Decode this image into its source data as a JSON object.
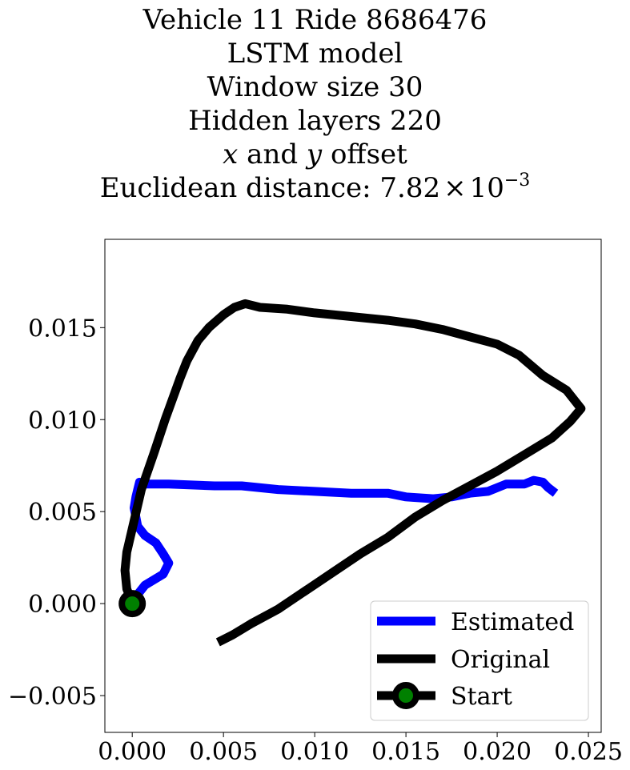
{
  "title": {
    "line1": "Vehicle 11 Ride 8686476",
    "line2": "LSTM model",
    "line3": "Window size 30",
    "line4": "Hidden layers 220",
    "line5_var1": "x",
    "line5_mid": " and ",
    "line5_var2": "y",
    "line5_end": " offset",
    "line6_prefix": "Euclidean distance: 7.82",
    "line6_times": "×",
    "line6_base": "10",
    "line6_exp": "−3"
  },
  "chart_data": {
    "type": "line",
    "xlim": [
      -0.0015,
      0.0257
    ],
    "ylim": [
      -0.007,
      0.0198
    ],
    "xticks": [
      0.0,
      0.005,
      0.01,
      0.015,
      0.02,
      0.025
    ],
    "xtick_labels": [
      "0.000",
      "0.005",
      "0.010",
      "0.015",
      "0.020",
      "0.025"
    ],
    "yticks": [
      -0.005,
      0.0,
      0.005,
      0.01,
      0.015
    ],
    "ytick_labels": [
      "−0.005",
      "0.000",
      "0.005",
      "0.010",
      "0.015"
    ],
    "legend_position": "lower-right",
    "series": [
      {
        "name": "Estimated",
        "color": "#0000ff",
        "points": [
          [
            0.0,
            0.0
          ],
          [
            0.0003,
            0.0005
          ],
          [
            0.0007,
            0.001
          ],
          [
            0.0012,
            0.0013
          ],
          [
            0.0017,
            0.0016
          ],
          [
            0.002,
            0.0022
          ],
          [
            0.0017,
            0.0027
          ],
          [
            0.0013,
            0.0033
          ],
          [
            0.0007,
            0.0037
          ],
          [
            0.0003,
            0.0042
          ],
          [
            0.0002,
            0.0047
          ],
          [
            0.0001,
            0.0052
          ],
          [
            0.0002,
            0.0058
          ],
          [
            0.0003,
            0.0062
          ],
          [
            0.0004,
            0.0066
          ],
          [
            0.0007,
            0.0065
          ],
          [
            0.002,
            0.0065
          ],
          [
            0.0045,
            0.0064
          ],
          [
            0.006,
            0.0064
          ],
          [
            0.008,
            0.0062
          ],
          [
            0.01,
            0.0061
          ],
          [
            0.012,
            0.006
          ],
          [
            0.014,
            0.006
          ],
          [
            0.015,
            0.0058
          ],
          [
            0.0165,
            0.0057
          ],
          [
            0.0175,
            0.0058
          ],
          [
            0.0185,
            0.006
          ],
          [
            0.0195,
            0.0061
          ],
          [
            0.0205,
            0.0065
          ],
          [
            0.0215,
            0.0065
          ],
          [
            0.022,
            0.0067
          ],
          [
            0.0225,
            0.0066
          ],
          [
            0.0228,
            0.0063
          ],
          [
            0.0232,
            0.006
          ]
        ]
      },
      {
        "name": "Original",
        "color": "#000000",
        "points": [
          [
            0.0,
            0.0
          ],
          [
            -0.0003,
            0.0008
          ],
          [
            -0.0004,
            0.0018
          ],
          [
            -0.0003,
            0.0028
          ],
          [
            0.0001,
            0.0045
          ],
          [
            0.0005,
            0.0062
          ],
          [
            0.0012,
            0.0082
          ],
          [
            0.0018,
            0.01
          ],
          [
            0.0026,
            0.0122
          ],
          [
            0.003,
            0.0132
          ],
          [
            0.0036,
            0.0143
          ],
          [
            0.0042,
            0.015
          ],
          [
            0.005,
            0.0157
          ],
          [
            0.0056,
            0.0161
          ],
          [
            0.0062,
            0.0163
          ],
          [
            0.007,
            0.0161
          ],
          [
            0.0085,
            0.016
          ],
          [
            0.01,
            0.0158
          ],
          [
            0.012,
            0.0156
          ],
          [
            0.014,
            0.0154
          ],
          [
            0.0155,
            0.0152
          ],
          [
            0.017,
            0.0149
          ],
          [
            0.0185,
            0.0145
          ],
          [
            0.02,
            0.0141
          ],
          [
            0.0212,
            0.0135
          ],
          [
            0.0225,
            0.0124
          ],
          [
            0.0238,
            0.0116
          ],
          [
            0.0246,
            0.0106
          ],
          [
            0.024,
            0.0099
          ],
          [
            0.023,
            0.009
          ],
          [
            0.0215,
            0.0081
          ],
          [
            0.02,
            0.0072
          ],
          [
            0.0185,
            0.0064
          ],
          [
            0.017,
            0.0056
          ],
          [
            0.0155,
            0.0047
          ],
          [
            0.014,
            0.0036
          ],
          [
            0.0125,
            0.0027
          ],
          [
            0.011,
            0.0017
          ],
          [
            0.0095,
            0.0007
          ],
          [
            0.008,
            -0.0003
          ],
          [
            0.0065,
            -0.0011
          ],
          [
            0.0055,
            -0.0017
          ],
          [
            0.0047,
            -0.0021
          ]
        ]
      },
      {
        "name": "Start",
        "color": "#000000",
        "marker_color": "#008000",
        "points": [
          [
            0.0,
            0.0
          ]
        ]
      }
    ]
  }
}
